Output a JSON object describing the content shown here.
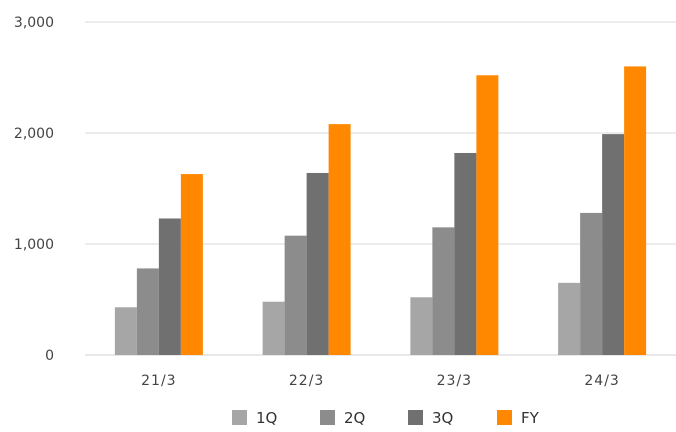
{
  "chart_data": {
    "type": "bar",
    "title": "",
    "xlabel": "",
    "ylabel": "",
    "categories": [
      "21/3",
      "22/3",
      "23/3",
      "24/3"
    ],
    "series": [
      {
        "name": "1Q",
        "color": "#a6a6a6",
        "values": [
          430,
          480,
          520,
          650
        ]
      },
      {
        "name": "2Q",
        "color": "#8c8c8c",
        "values": [
          780,
          1075,
          1150,
          1280
        ]
      },
      {
        "name": "3Q",
        "color": "#707070",
        "values": [
          1230,
          1640,
          1820,
          1990
        ]
      },
      {
        "name": "FY",
        "color": "#ff8800",
        "values": [
          1630,
          2080,
          2520,
          2600
        ]
      }
    ],
    "ylim": [
      0,
      3000
    ],
    "yticks": [
      0,
      1000,
      2000,
      3000
    ],
    "ytick_labels": [
      "0",
      "1,000",
      "2,000",
      "3,000"
    ],
    "grid": true,
    "legend": "bottom"
  }
}
